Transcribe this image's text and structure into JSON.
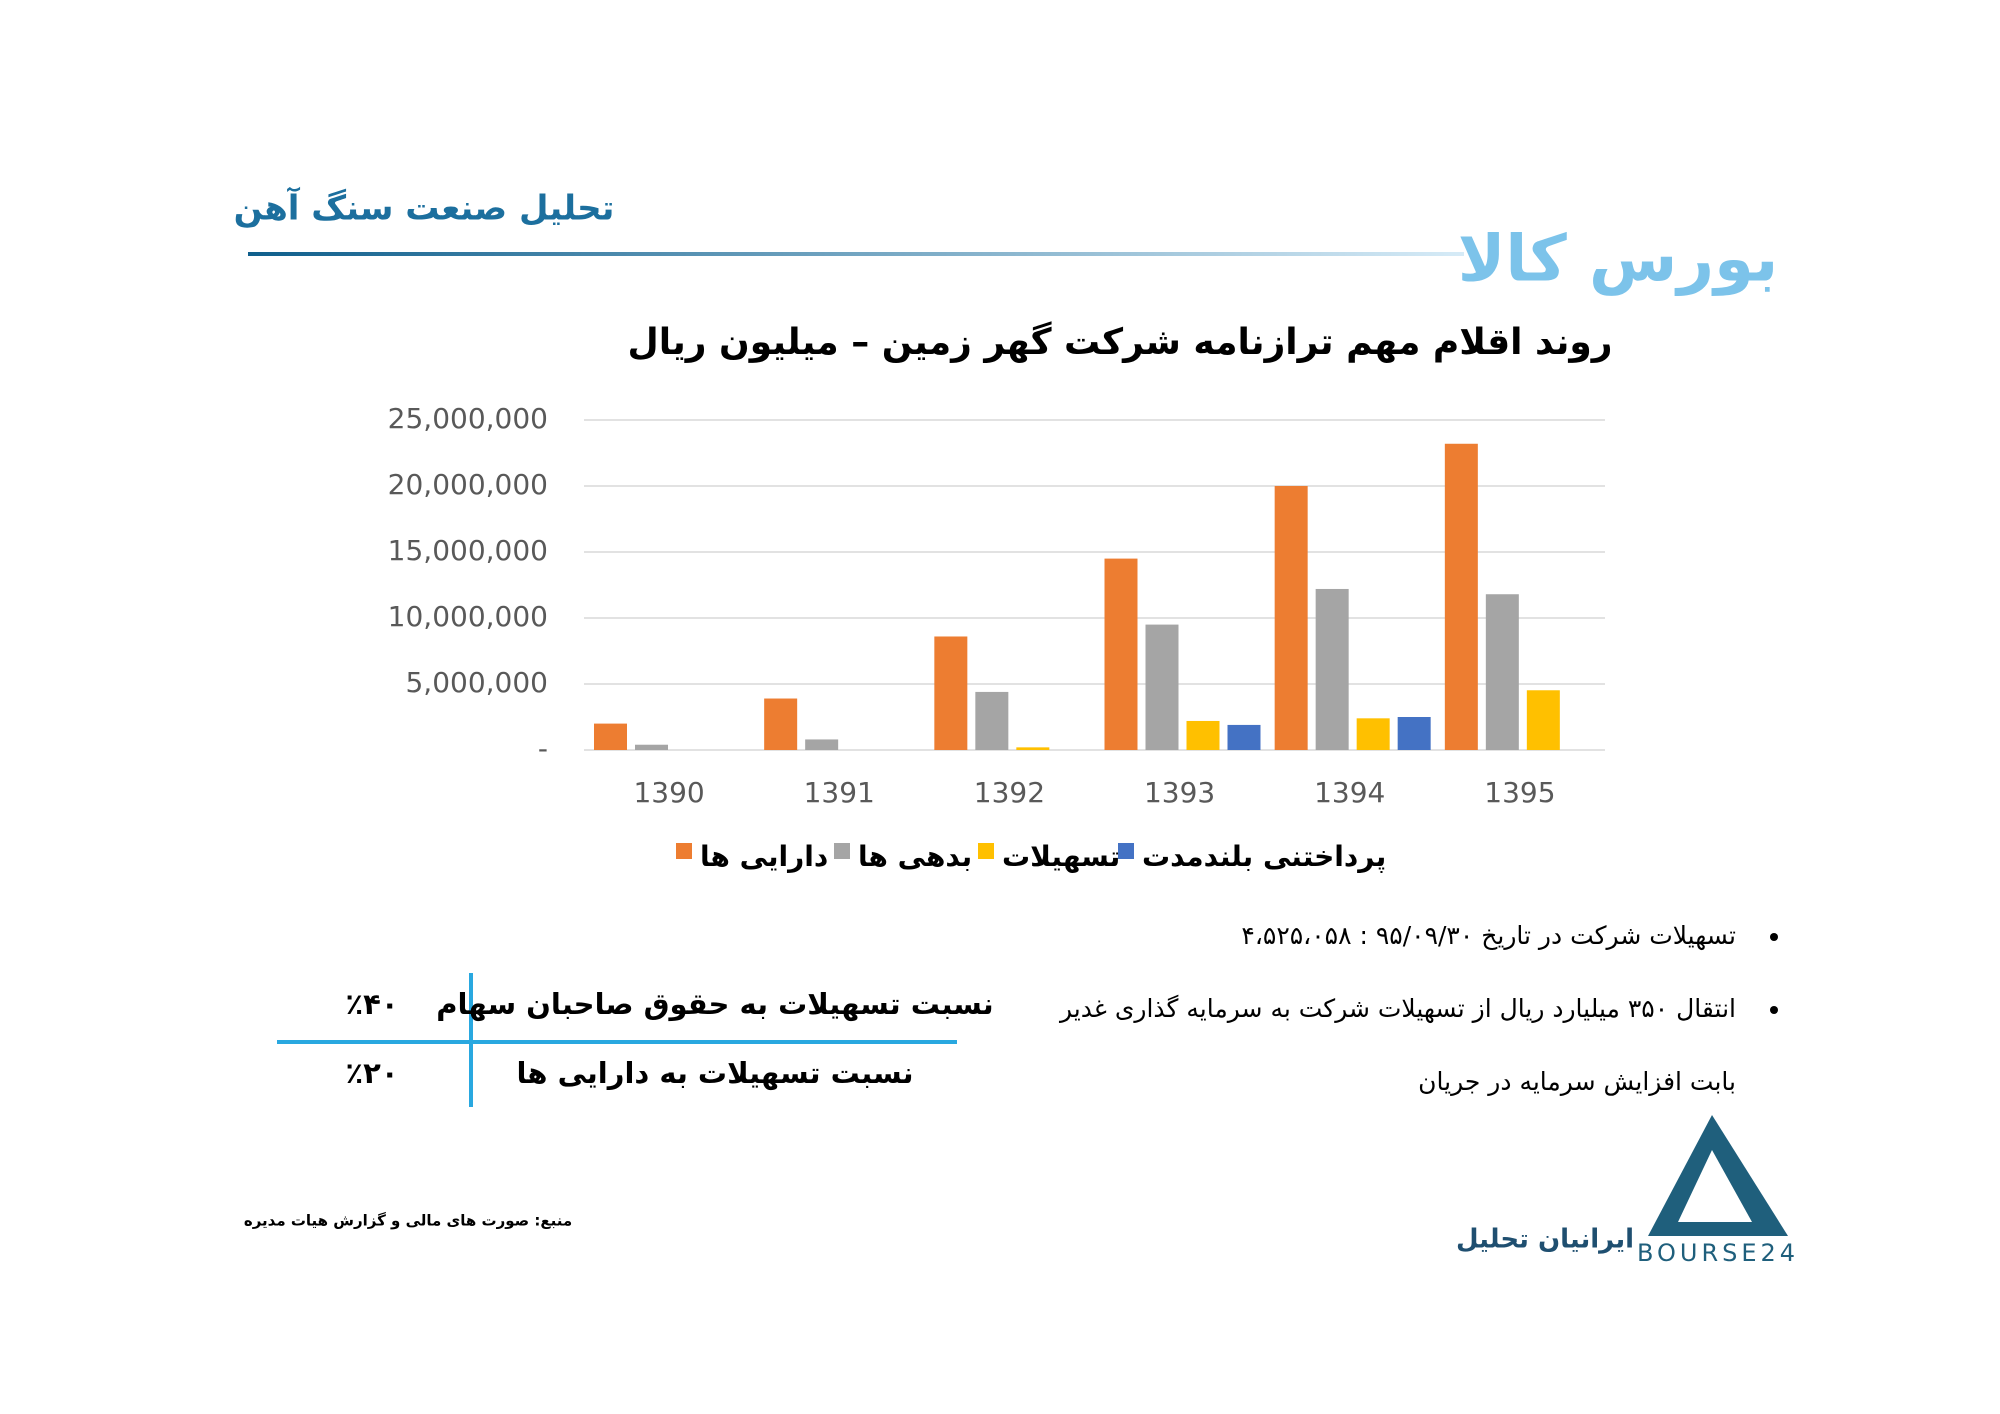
{
  "header": {
    "title": "تحلیل صنعت سنگ آهن",
    "brand": "بورس کالا"
  },
  "chart_data": {
    "type": "bar",
    "title": "روند اقلام مهم ترازنامه شرکت گهر زمین – میلیون ریال",
    "categories": [
      "1390",
      "1391",
      "1392",
      "1393",
      "1394",
      "1395"
    ],
    "series": [
      {
        "name": "دارایی ها",
        "color": "#ed7d31",
        "values": [
          2000000,
          3900000,
          8600000,
          14500000,
          20000000,
          23200000
        ]
      },
      {
        "name": "بدهی ها",
        "color": "#a5a5a5",
        "values": [
          400000,
          800000,
          4400000,
          9500000,
          12200000,
          11800000
        ]
      },
      {
        "name": "تسهیلات",
        "color": "#ffc000",
        "values": [
          null,
          null,
          200000,
          2200000,
          2400000,
          4525058
        ]
      },
      {
        "name": "پرداختنی بلندمدت",
        "color": "#4472c4",
        "values": [
          null,
          null,
          null,
          1900000,
          2500000,
          null
        ]
      }
    ],
    "ylim": [
      0,
      25000000
    ],
    "yticks": [
      {
        "value": 0,
        "label": "-"
      },
      {
        "value": 5000000,
        "label": "5,000,000"
      },
      {
        "value": 10000000,
        "label": "10,000,000"
      },
      {
        "value": 15000000,
        "label": "15,000,000"
      },
      {
        "value": 20000000,
        "label": "20,000,000"
      },
      {
        "value": 25000000,
        "label": "25,000,000"
      }
    ],
    "grid": true,
    "legend": "bottom"
  },
  "bullets": [
    {
      "lines": [
        "تسهیلات شرکت در تاریخ ۹۵/۰۹/۳۰ : ۴،۵۲۵،۰۵۸"
      ]
    },
    {
      "lines": [
        "انتقال ۳۵۰ میلیارد ریال از تسهیلات شرکت به سرمایه گذاری غدیر",
        "بابت افزایش سرمایه در جریان"
      ]
    }
  ],
  "table": {
    "rows": [
      [
        "نسبت تسهیلات به حقوق صاحبان سهام",
        "٪۴۰"
      ],
      [
        "نسبت تسهیلات به دارایی ها",
        "٪۲۰"
      ]
    ]
  },
  "source": "منبع: صورت های مالی و گزارش هیات مدیره",
  "logo": {
    "name": "ایرانیان تحلیل",
    "mark": "BOURSE24"
  }
}
